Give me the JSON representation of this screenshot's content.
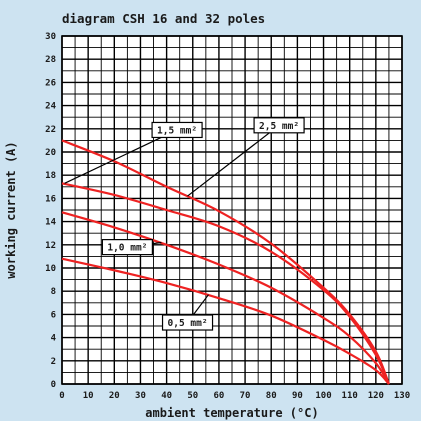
{
  "chart_data": {
    "type": "line",
    "title": "diagram CSH 16 and 32 poles",
    "xlabel": "ambient temperature (°C)",
    "ylabel": "working current (A)",
    "xlim": [
      0,
      130
    ],
    "ylim": [
      0,
      30
    ],
    "x_ticks": [
      0,
      10,
      20,
      30,
      40,
      50,
      60,
      70,
      80,
      90,
      100,
      110,
      120,
      130
    ],
    "x_tick_labels": [
      "0",
      "10",
      "20",
      "30",
      "40",
      "50",
      "60",
      "70",
      "80",
      "90",
      "100",
      "110",
      "120",
      "130"
    ],
    "y_ticks": [
      0,
      2,
      4,
      6,
      8,
      10,
      12,
      14,
      16,
      18,
      20,
      22,
      24,
      26,
      28,
      30
    ],
    "y_tick_labels": [
      "0",
      "2",
      "4",
      "6",
      "8",
      "10",
      "12",
      "14",
      "16",
      "18",
      "20",
      "22",
      "24",
      "26",
      "28",
      "30"
    ],
    "grid": true,
    "legend": "none",
    "colors": {
      "background": "#cde3f1",
      "plot_background": "#ffffff",
      "grid": "#000000",
      "series": "#ee2222",
      "label_box": "#ffffff"
    },
    "series": [
      {
        "name": "0,5 mm²",
        "x": [
          0,
          20,
          40,
          60,
          80,
          100,
          110,
          120,
          125
        ],
        "y": [
          10.8,
          9.8,
          8.7,
          7.4,
          5.9,
          3.8,
          2.6,
          1.2,
          0
        ]
      },
      {
        "name": "1,0 mm²",
        "x": [
          0,
          20,
          40,
          60,
          80,
          100,
          110,
          120,
          125
        ],
        "y": [
          14.8,
          13.5,
          12.0,
          10.3,
          8.3,
          5.7,
          4.1,
          1.8,
          0
        ]
      },
      {
        "name": "1,5 mm²",
        "x": [
          0,
          20,
          40,
          60,
          80,
          100,
          110,
          120,
          125
        ],
        "y": [
          21.0,
          19.2,
          17.0,
          14.9,
          12.1,
          8.3,
          6.0,
          2.8,
          0
        ]
      },
      {
        "name": "2,5 mm²",
        "x": [
          0,
          20,
          40,
          60,
          80,
          100,
          110,
          120,
          125
        ],
        "y": [
          17.3,
          16.3,
          15.0,
          13.6,
          11.4,
          8.1,
          5.8,
          2.5,
          0
        ]
      }
    ],
    "annotations": [
      {
        "text": "1,5 mm²",
        "series": "1,5 mm²",
        "box_at": [
          44,
          21.9
        ],
        "point_at": [
          1,
          17.3
        ]
      },
      {
        "text": "2,5 mm²",
        "series": "2,5 mm²",
        "box_at": [
          83,
          22.3
        ],
        "point_at": [
          48,
          16.2
        ]
      },
      {
        "text": "1,0 mm²",
        "series": "1,0 mm²",
        "box_at": [
          25,
          11.8
        ],
        "point_at": [
          38,
          12.2
        ]
      },
      {
        "text": "0,5 mm²",
        "series": "0,5 mm²",
        "box_at": [
          48,
          5.3
        ],
        "point_at": [
          56,
          7.7
        ]
      }
    ]
  }
}
